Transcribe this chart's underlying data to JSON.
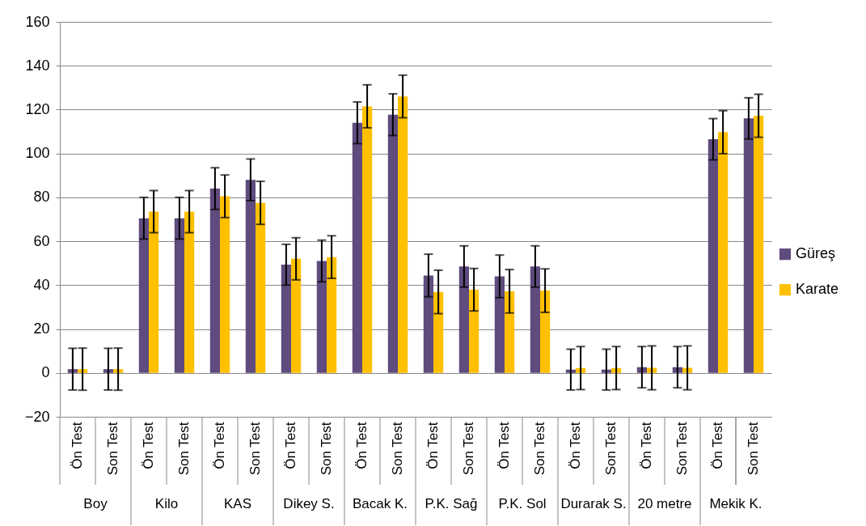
{
  "chart_data": {
    "type": "bar",
    "categories": [
      "Ön Test",
      "Son Test",
      "Ön Test",
      "Son Test",
      "Ön Test",
      "Son Test",
      "Ön Test",
      "Son Test",
      "Ön Test",
      "Son Test",
      "Ön Test",
      "Son Test",
      "Ön Test",
      "Son Test",
      "Ön Test",
      "Son Test",
      "Ön Test",
      "Son Test",
      "Ön Test",
      "Son Test"
    ],
    "annotations": [
      "Boy",
      "Kilo",
      "KAS",
      "Dikey S.",
      "Bacak K.",
      "P.K. Sağ",
      "P.K. Sol",
      "Durarak S.",
      "20 metre",
      "Mekik K."
    ],
    "series": [
      {
        "name": "Güreş",
        "color": "#5f4b7d",
        "values": [
          1.7,
          1.7,
          70.5,
          70.5,
          84,
          88,
          49.3,
          51,
          114,
          117.7,
          44.4,
          48.5,
          44,
          48.5,
          1.5,
          1.5,
          2.6,
          2.6,
          106.5,
          116
        ],
        "errors": [
          9.5,
          9.5,
          9.5,
          9.5,
          9.5,
          9.5,
          9.3,
          9.5,
          9.5,
          9.5,
          9.7,
          9.4,
          9.7,
          9.4,
          9.3,
          9.3,
          9.4,
          9.4,
          9.4,
          9.4
        ]
      },
      {
        "name": "Karate",
        "color": "#ffc000",
        "values": [
          1.7,
          1.7,
          73.5,
          73.5,
          80.5,
          77.5,
          52,
          52.8,
          121.5,
          126,
          36.9,
          37.9,
          37.2,
          37.5,
          2.2,
          2.2,
          2.3,
          2.3,
          109.7,
          117.2
        ],
        "errors": [
          9.6,
          9.6,
          9.6,
          9.6,
          9.7,
          9.8,
          9.6,
          9.7,
          9.8,
          9.7,
          9.9,
          9.7,
          9.9,
          9.9,
          9.8,
          9.8,
          10,
          10,
          9.8,
          9.8
        ]
      }
    ],
    "ylim": [
      -20,
      160
    ],
    "yticks": [
      -20,
      0,
      20,
      40,
      60,
      80,
      100,
      120,
      140,
      160
    ],
    "grid": "y",
    "legend": "right"
  }
}
